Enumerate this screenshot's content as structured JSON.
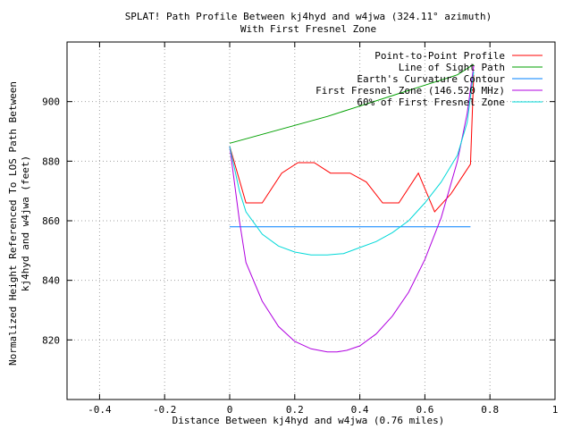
{
  "chart_data": {
    "type": "line",
    "title_line1": "SPLAT! Path Profile Between kj4hyd and w4jwa (324.11° azimuth)",
    "title_line2": "With First Fresnel Zone",
    "xlabel": "Distance Between kj4hyd and w4jwa (0.76 miles)",
    "ylabel_line1": "Normalized Height Referenced To LOS Path Between",
    "ylabel_line2": "kj4hyd and w4jwa (feet)",
    "xlim": [
      -0.5,
      1.0
    ],
    "ylim": [
      800,
      920
    ],
    "xticks": [
      -0.4,
      -0.2,
      0,
      0.2,
      0.4,
      0.6,
      0.8,
      1
    ],
    "yticks": [
      820,
      840,
      860,
      880,
      900
    ],
    "xtick_labels": [
      "-0.4",
      "-0.2",
      "0",
      "0.2",
      "0.4",
      "0.6",
      "0.8",
      "1"
    ],
    "ytick_labels": [
      "820",
      "840",
      "860",
      "880",
      "900"
    ],
    "grid": true,
    "legend_position": "top-right",
    "series": [
      {
        "name": "Point-to-Point Profile",
        "color": "#ff0000",
        "x": [
          0,
          0.05,
          0.1,
          0.16,
          0.21,
          0.26,
          0.31,
          0.37,
          0.42,
          0.47,
          0.52,
          0.58,
          0.63,
          0.68,
          0.74,
          0.75
        ],
        "y": [
          885,
          866,
          866,
          876,
          879.5,
          879.5,
          876,
          876,
          873,
          866,
          866,
          876,
          863,
          869,
          879,
          909
        ]
      },
      {
        "name": "Line of Sight Path",
        "color": "#00a000",
        "x": [
          0,
          0.1,
          0.2,
          0.3,
          0.4,
          0.5,
          0.6,
          0.7,
          0.75
        ],
        "y": [
          886,
          889,
          892,
          895,
          898.5,
          902,
          905.5,
          909,
          912.5
        ]
      },
      {
        "name": "Earth's Curvature Contour",
        "color": "#0080ff",
        "x": [
          0,
          0.1,
          0.2,
          0.3,
          0.4,
          0.5,
          0.6,
          0.7,
          0.74
        ],
        "y": [
          858,
          858,
          858,
          858,
          858,
          858,
          858,
          858,
          858
        ]
      },
      {
        "name": "First Fresnel Zone (146.520 MHz)",
        "color": "#b000e0",
        "x": [
          0,
          0.03,
          0.05,
          0.1,
          0.15,
          0.2,
          0.25,
          0.3,
          0.33,
          0.36,
          0.4,
          0.45,
          0.5,
          0.55,
          0.6,
          0.65,
          0.7,
          0.73,
          0.75
        ],
        "y": [
          885,
          860,
          846,
          833,
          824.5,
          819.5,
          817,
          816,
          816,
          816.5,
          818,
          822,
          828,
          836,
          847,
          861,
          880,
          896,
          912
        ]
      },
      {
        "name": "60% of First Fresnel Zone",
        "color": "#00d8d8",
        "x": [
          0,
          0.03,
          0.05,
          0.1,
          0.15,
          0.2,
          0.25,
          0.3,
          0.35,
          0.4,
          0.45,
          0.5,
          0.55,
          0.6,
          0.65,
          0.7,
          0.73,
          0.75
        ],
        "y": [
          885,
          870,
          863,
          855.5,
          851.5,
          849.5,
          848.5,
          848.5,
          849,
          851,
          853,
          856,
          860,
          866,
          873,
          882,
          893,
          910
        ]
      }
    ]
  }
}
